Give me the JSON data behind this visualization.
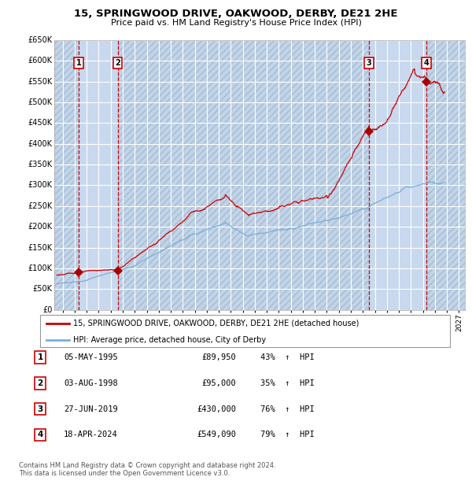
{
  "title": "15, SPRINGWOOD DRIVE, OAKWOOD, DERBY, DE21 2HE",
  "subtitle": "Price paid vs. HM Land Registry's House Price Index (HPI)",
  "ylim": [
    0,
    650000
  ],
  "yticks": [
    0,
    50000,
    100000,
    150000,
    200000,
    250000,
    300000,
    350000,
    400000,
    450000,
    500000,
    550000,
    600000,
    650000
  ],
  "ytick_labels": [
    "£0",
    "£50K",
    "£100K",
    "£150K",
    "£200K",
    "£250K",
    "£300K",
    "£350K",
    "£400K",
    "£450K",
    "£500K",
    "£550K",
    "£600K",
    "£650K"
  ],
  "xlim_start": 1993.3,
  "xlim_end": 2027.5,
  "plot_bg_color": "#dce9f8",
  "grid_color": "#ffffff",
  "hpi_line_color": "#7bafd4",
  "price_line_color": "#cc0000",
  "sale_marker_color": "#aa0000",
  "dashed_line_color": "#cc0000",
  "hatch_color": "#c0d4ea",
  "owned_shade_color": "#c8d8ee",
  "transactions": [
    {
      "id": 1,
      "date_label": "05-MAY-1995",
      "year": 1995.35,
      "price": 89950,
      "pct": "43%",
      "dir": "↑"
    },
    {
      "id": 2,
      "date_label": "03-AUG-1998",
      "year": 1998.58,
      "price": 95000,
      "pct": "35%",
      "dir": "↑"
    },
    {
      "id": 3,
      "date_label": "27-JUN-2019",
      "year": 2019.49,
      "price": 430000,
      "pct": "76%",
      "dir": "↑"
    },
    {
      "id": 4,
      "date_label": "18-APR-2024",
      "year": 2024.29,
      "price": 549090,
      "pct": "79%",
      "dir": "↑"
    }
  ],
  "legend_label_price": "15, SPRINGWOOD DRIVE, OAKWOOD, DERBY, DE21 2HE (detached house)",
  "legend_label_hpi": "HPI: Average price, detached house, City of Derby",
  "footer_line1": "Contains HM Land Registry data © Crown copyright and database right 2024.",
  "footer_line2": "This data is licensed under the Open Government Licence v3.0."
}
